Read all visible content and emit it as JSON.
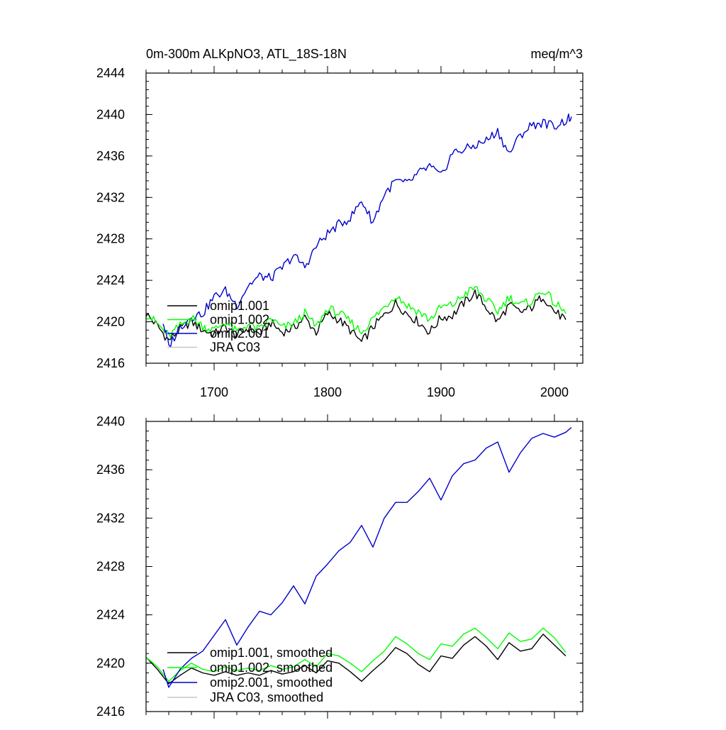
{
  "chart_data": [
    {
      "type": "line",
      "title_left": "0m-300m ALKpNO3, ATL_18S-18N",
      "title_right": "meq/m^3",
      "xlim": [
        1640,
        2025
      ],
      "ylim": [
        2416,
        2444
      ],
      "x_ticks": [
        1700,
        1800,
        1900,
        2000
      ],
      "y_ticks": [
        2416,
        2420,
        2424,
        2428,
        2432,
        2436,
        2440,
        2444
      ],
      "grid": false,
      "legend_position": "bottom-left",
      "series": [
        {
          "name": "omip1.001",
          "color": "#000000",
          "x": [
            1640,
            1650,
            1660,
            1670,
            1680,
            1690,
            1700,
            1710,
            1720,
            1730,
            1740,
            1750,
            1760,
            1770,
            1780,
            1790,
            1800,
            1810,
            1820,
            1830,
            1840,
            1850,
            1860,
            1870,
            1880,
            1890,
            1900,
            1910,
            1920,
            1930,
            1940,
            1950,
            1960,
            1970,
            1980,
            1990,
            2000,
            2010
          ],
          "values": [
            2420.8,
            2419.6,
            2418.2,
            2419.3,
            2420.0,
            2419.2,
            2418.8,
            2419.5,
            2418.6,
            2419.4,
            2418.8,
            2419.9,
            2419.0,
            2419.4,
            2420.4,
            2419.0,
            2420.8,
            2420.2,
            2419.2,
            2418.0,
            2419.5,
            2420.6,
            2421.8,
            2420.8,
            2420.0,
            2419.0,
            2420.4,
            2420.6,
            2421.8,
            2422.8,
            2421.4,
            2420.0,
            2421.6,
            2420.9,
            2421.4,
            2422.5,
            2421.0,
            2420.2
          ]
        },
        {
          "name": "omip1.002",
          "color": "#00ff00",
          "x": [
            1640,
            1650,
            1660,
            1670,
            1680,
            1690,
            1700,
            1710,
            1720,
            1730,
            1740,
            1750,
            1760,
            1770,
            1780,
            1790,
            1800,
            1810,
            1820,
            1830,
            1840,
            1850,
            1860,
            1870,
            1880,
            1890,
            1900,
            1910,
            1920,
            1930,
            1940,
            1950,
            1960,
            1970,
            1980,
            1990,
            2000,
            2010
          ],
          "values": [
            2420.8,
            2419.8,
            2418.6,
            2419.6,
            2420.4,
            2419.6,
            2419.2,
            2420.0,
            2419.0,
            2419.8,
            2419.2,
            2420.3,
            2419.4,
            2419.8,
            2420.8,
            2419.5,
            2421.3,
            2420.8,
            2420.0,
            2419.0,
            2420.3,
            2421.4,
            2422.6,
            2421.6,
            2421.0,
            2420.2,
            2421.4,
            2421.6,
            2422.6,
            2423.3,
            2422.1,
            2421.0,
            2422.4,
            2421.6,
            2422.0,
            2423.1,
            2421.8,
            2420.8
          ]
        },
        {
          "name": "omip2.001",
          "color": "#0000cc",
          "x": [
            1655,
            1660,
            1670,
            1680,
            1690,
            1700,
            1710,
            1720,
            1730,
            1740,
            1750,
            1760,
            1770,
            1780,
            1790,
            1800,
            1810,
            1820,
            1830,
            1840,
            1850,
            1860,
            1870,
            1880,
            1890,
            1900,
            1910,
            1920,
            1930,
            1940,
            1950,
            1960,
            1970,
            1980,
            1990,
            2000,
            2010,
            2015
          ],
          "values": [
            2420.0,
            2417.6,
            2419.5,
            2420.5,
            2420.8,
            2422.4,
            2423.0,
            2421.6,
            2423.5,
            2424.4,
            2424.2,
            2425.2,
            2426.4,
            2425.3,
            2427.3,
            2428.5,
            2429.4,
            2430.0,
            2431.7,
            2429.6,
            2432.3,
            2433.6,
            2433.3,
            2434.3,
            2435.0,
            2434.0,
            2436.3,
            2436.6,
            2437.0,
            2437.5,
            2438.4,
            2436.2,
            2438.0,
            2439.0,
            2439.2,
            2438.9,
            2439.4,
            2439.8
          ]
        },
        {
          "name": "JRA C03",
          "color": "#c8c8c8",
          "x": [],
          "values": []
        }
      ]
    },
    {
      "type": "line",
      "title_left": "",
      "title_right": "",
      "xlim": [
        1640,
        2025
      ],
      "ylim": [
        2416,
        2440
      ],
      "x_ticks": [
        1700,
        1800,
        1900,
        2000
      ],
      "x_ticklabels_shown": false,
      "y_ticks": [
        2416,
        2420,
        2424,
        2428,
        2432,
        2436,
        2440
      ],
      "grid": false,
      "legend_position": "bottom-left",
      "series": [
        {
          "name": "omip1.001, smoothed",
          "color": "#000000",
          "x": [
            1640,
            1650,
            1660,
            1670,
            1680,
            1690,
            1700,
            1710,
            1720,
            1730,
            1740,
            1750,
            1760,
            1770,
            1780,
            1790,
            1800,
            1810,
            1820,
            1830,
            1840,
            1850,
            1860,
            1870,
            1880,
            1890,
            1900,
            1910,
            1920,
            1930,
            1940,
            1950,
            1960,
            1970,
            1980,
            1990,
            2000,
            2010
          ],
          "values": [
            2420.5,
            2419.5,
            2418.3,
            2419.0,
            2419.6,
            2419.2,
            2419.0,
            2419.3,
            2419.0,
            2419.2,
            2419.0,
            2419.4,
            2419.1,
            2419.3,
            2419.8,
            2419.2,
            2420.2,
            2420.0,
            2419.3,
            2418.5,
            2419.4,
            2420.2,
            2421.3,
            2420.8,
            2419.9,
            2419.3,
            2420.6,
            2420.4,
            2421.5,
            2422.2,
            2421.4,
            2420.3,
            2421.7,
            2421.0,
            2421.2,
            2422.4,
            2421.5,
            2420.6
          ]
        },
        {
          "name": "omip1.002, smoothed",
          "color": "#00ff00",
          "x": [
            1640,
            1650,
            1660,
            1670,
            1680,
            1690,
            1700,
            1710,
            1720,
            1730,
            1740,
            1750,
            1760,
            1770,
            1780,
            1790,
            1800,
            1810,
            1820,
            1830,
            1840,
            1850,
            1860,
            1870,
            1880,
            1890,
            1900,
            1910,
            1920,
            1930,
            1940,
            1950,
            1960,
            1970,
            1980,
            1990,
            2000,
            2010
          ],
          "values": [
            2420.5,
            2419.7,
            2418.5,
            2419.4,
            2420.0,
            2419.5,
            2419.3,
            2419.7,
            2419.4,
            2419.6,
            2419.4,
            2419.8,
            2419.5,
            2419.7,
            2420.3,
            2419.7,
            2420.8,
            2420.6,
            2420.0,
            2419.3,
            2420.2,
            2421.0,
            2422.2,
            2421.6,
            2420.8,
            2420.3,
            2421.6,
            2421.4,
            2422.4,
            2422.9,
            2422.1,
            2421.2,
            2422.5,
            2421.8,
            2422.0,
            2422.9,
            2422.1,
            2420.9
          ]
        },
        {
          "name": "omip2.001, smoothed",
          "color": "#0000cc",
          "x": [
            1655,
            1660,
            1670,
            1680,
            1690,
            1700,
            1710,
            1720,
            1730,
            1740,
            1750,
            1760,
            1770,
            1780,
            1790,
            1800,
            1810,
            1820,
            1830,
            1840,
            1850,
            1860,
            1870,
            1880,
            1890,
            1900,
            1910,
            1920,
            1930,
            1940,
            1950,
            1960,
            1970,
            1980,
            1990,
            2000,
            2010,
            2015
          ],
          "values": [
            2419.5,
            2418.0,
            2419.5,
            2420.4,
            2421.0,
            2422.3,
            2423.6,
            2421.5,
            2423.0,
            2424.3,
            2424.0,
            2425.0,
            2426.4,
            2424.9,
            2427.2,
            2428.2,
            2429.3,
            2430.0,
            2431.4,
            2429.6,
            2432.0,
            2433.3,
            2433.3,
            2434.2,
            2435.3,
            2433.5,
            2435.5,
            2436.5,
            2436.8,
            2437.8,
            2438.3,
            2435.8,
            2437.4,
            2438.6,
            2439.0,
            2438.7,
            2439.1,
            2439.5
          ]
        },
        {
          "name": "JRA C03, smoothed",
          "color": "#c8c8c8",
          "x": [],
          "values": []
        }
      ]
    }
  ]
}
